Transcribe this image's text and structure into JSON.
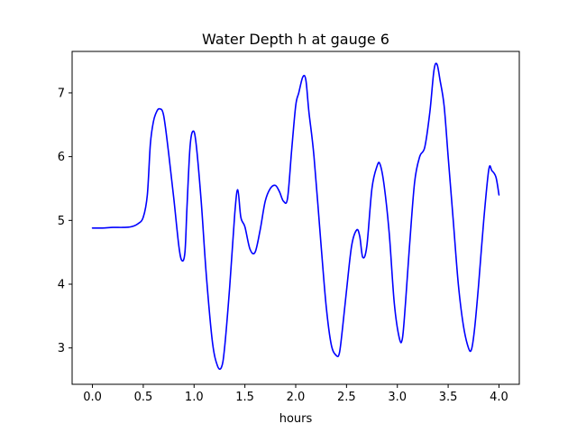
{
  "chart_data": {
    "type": "line",
    "title": "Water Depth h at gauge 6",
    "xlabel": "hours",
    "ylabel": "",
    "xlim": [
      -0.2,
      4.2
    ],
    "ylim": [
      2.43,
      7.65
    ],
    "xticks": [
      0.0,
      0.5,
      1.0,
      1.5,
      2.0,
      2.5,
      3.0,
      3.5,
      4.0
    ],
    "xtick_labels": [
      "0.0",
      "0.5",
      "1.0",
      "1.5",
      "2.0",
      "2.5",
      "3.0",
      "3.5",
      "4.0"
    ],
    "yticks": [
      3,
      4,
      5,
      6,
      7
    ],
    "ytick_labels": [
      "3",
      "4",
      "5",
      "6",
      "7"
    ],
    "grid": false,
    "series": [
      {
        "color": "#0000ff",
        "x": [
          0.0,
          0.1,
          0.2,
          0.3,
          0.38,
          0.45,
          0.5,
          0.54,
          0.57,
          0.6,
          0.63,
          0.66,
          0.7,
          0.75,
          0.8,
          0.85,
          0.88,
          0.91,
          0.93,
          0.96,
          0.99,
          1.02,
          1.07,
          1.12,
          1.18,
          1.23,
          1.27,
          1.3,
          1.35,
          1.4,
          1.43,
          1.46,
          1.5,
          1.55,
          1.6,
          1.65,
          1.7,
          1.75,
          1.8,
          1.84,
          1.88,
          1.92,
          1.96,
          2.0,
          2.03,
          2.07,
          2.1,
          2.13,
          2.18,
          2.25,
          2.3,
          2.35,
          2.4,
          2.43,
          2.46,
          2.5,
          2.55,
          2.6,
          2.63,
          2.66,
          2.7,
          2.75,
          2.8,
          2.83,
          2.87,
          2.92,
          2.97,
          3.02,
          3.05,
          3.08,
          3.12,
          3.17,
          3.22,
          3.27,
          3.32,
          3.36,
          3.39,
          3.42,
          3.46,
          3.5,
          3.55,
          3.6,
          3.65,
          3.7,
          3.73,
          3.76,
          3.8,
          3.85,
          3.9,
          3.93,
          3.97,
          4.0
        ],
        "y": [
          4.88,
          4.88,
          4.89,
          4.89,
          4.9,
          4.95,
          5.05,
          5.4,
          6.2,
          6.55,
          6.7,
          6.75,
          6.65,
          6.05,
          5.35,
          4.6,
          4.37,
          4.5,
          5.2,
          6.15,
          6.4,
          6.2,
          5.3,
          4.15,
          3.1,
          2.72,
          2.7,
          3.0,
          3.95,
          5.1,
          5.48,
          5.05,
          4.9,
          4.55,
          4.5,
          4.85,
          5.3,
          5.5,
          5.55,
          5.45,
          5.3,
          5.35,
          6.1,
          6.8,
          7.0,
          7.25,
          7.2,
          6.7,
          6.0,
          4.6,
          3.65,
          3.05,
          2.88,
          2.92,
          3.3,
          3.9,
          4.6,
          4.85,
          4.75,
          4.42,
          4.6,
          5.5,
          5.85,
          5.88,
          5.55,
          4.8,
          3.7,
          3.15,
          3.15,
          3.7,
          4.6,
          5.6,
          6.0,
          6.15,
          6.7,
          7.35,
          7.45,
          7.2,
          6.8,
          6.0,
          5.0,
          4.0,
          3.35,
          3.0,
          2.98,
          3.3,
          4.0,
          5.0,
          5.8,
          5.78,
          5.68,
          5.4
        ]
      }
    ]
  }
}
